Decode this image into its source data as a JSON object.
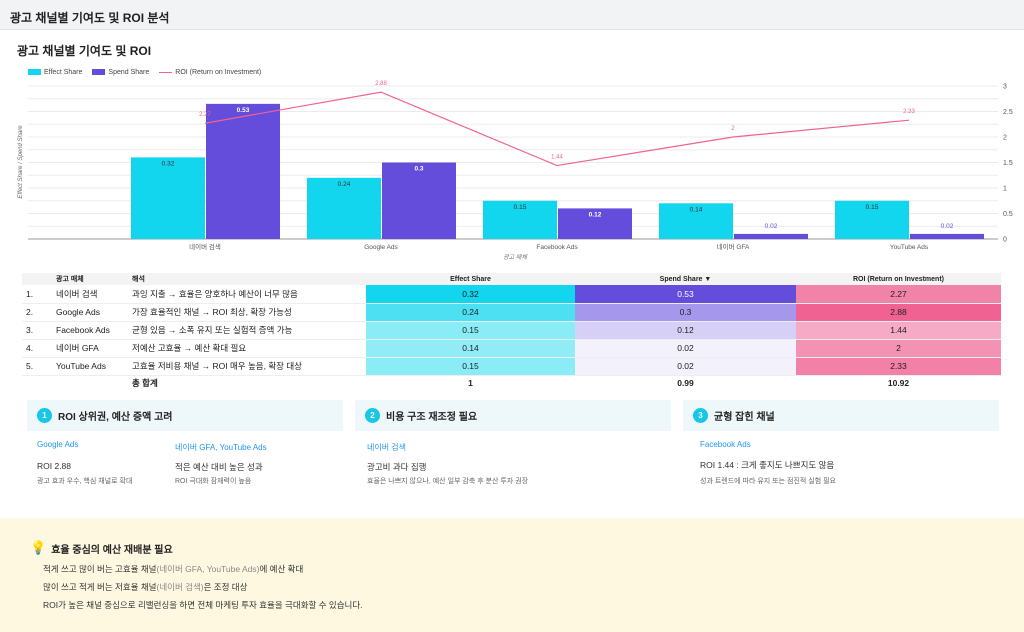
{
  "header": {
    "title": "광고 채널별 기여도 및 ROI 분석"
  },
  "chart_data": {
    "type": "bar",
    "title": "광고 채널별 기여도 및 ROI",
    "categories": [
      "네이버 검색",
      "Google Ads",
      "Facebook Ads",
      "네이버 GFA",
      "YouTube Ads"
    ],
    "series": [
      {
        "name": "Effect Share",
        "type": "bar",
        "axis": "left",
        "color": "#12d5ee",
        "values": [
          0.32,
          0.24,
          0.15,
          0.14,
          0.15
        ]
      },
      {
        "name": "Spend Share",
        "type": "bar",
        "axis": "left",
        "color": "#654ddb",
        "values": [
          0.53,
          0.3,
          0.12,
          0.02,
          0.02
        ]
      },
      {
        "name": "ROI (Return on Investment)",
        "type": "line",
        "axis": "right",
        "color": "#f06292",
        "values": [
          2.27,
          2.88,
          1.44,
          2,
          2.33
        ]
      }
    ],
    "xlabel": "광고 매체",
    "ylabel": "Effect Share / Spend Share",
    "ylim_left": [
      0,
      0.6
    ],
    "ylim_right": [
      0,
      3
    ],
    "right_ticks": [
      "0",
      "0.5",
      "1",
      "1.5",
      "2",
      "2.5",
      "3"
    ],
    "grid": true,
    "legend": "top-left"
  },
  "table": {
    "headers": [
      "",
      "광고 매체",
      "해석",
      "Effect Share",
      "Spend Share ▼",
      "ROI (Return on Investment)"
    ],
    "rows": [
      {
        "n": "1.",
        "ch": "네이버 검색",
        "desc": "과잉 지출 → 효율은 양호하나 예산이 너무 많음",
        "e": "0.32",
        "s": "0.53",
        "r": "2.27",
        "ec": "#12d5ee",
        "sc": "#654ddb",
        "rc": "#f283a8",
        "st": "#fff"
      },
      {
        "n": "2.",
        "ch": "Google Ads",
        "desc": "가장 효율적인 채널 → ROI 최상, 확장 가능성",
        "e": "0.24",
        "s": "0.3",
        "r": "2.88",
        "ec": "#4de0f2",
        "sc": "#a598ec",
        "rc": "#f06292",
        "st": "#222"
      },
      {
        "n": "3.",
        "ch": "Facebook Ads",
        "desc": "균형 있음 → 소폭 유지 또는 실험적 증액 가능",
        "e": "0.15",
        "s": "0.12",
        "r": "1.44",
        "ec": "#8aecf7",
        "sc": "#d7d0f6",
        "rc": "#f7aac6",
        "st": "#222"
      },
      {
        "n": "4.",
        "ch": "네이버 GFA",
        "desc": "저예산 고효율 → 예산 확대 필요",
        "e": "0.14",
        "s": "0.02",
        "r": "2",
        "ec": "#90edf8",
        "sc": "#f3f1fc",
        "rc": "#f492b3",
        "st": "#222"
      },
      {
        "n": "5.",
        "ch": "YouTube Ads",
        "desc": "고효율 저비용 채널 → ROI 매우 높음, 확장 대상",
        "e": "0.15",
        "s": "0.02",
        "r": "2.33",
        "ec": "#8aecf7",
        "sc": "#f3f1fc",
        "rc": "#f380a6",
        "st": "#222"
      }
    ],
    "total": {
      "label": "총 합계",
      "e": "1",
      "s": "0.99",
      "r": "10.92"
    }
  },
  "cards": [
    {
      "num": "1",
      "title": "ROI 상위권, 예산 증액 고려",
      "a": {
        "link": "Google Ads",
        "bold": "ROI 2.88",
        "note": "광고 효과 우수, 핵심 채널로 확대"
      },
      "b": {
        "link": "네이버 GFA, YouTube Ads",
        "bold": "적은 예산 대비 높은 성과",
        "note": "ROI 극대화 잠재력이 높음"
      }
    },
    {
      "num": "2",
      "title": "비용 구조 재조정 필요",
      "a": {
        "link": "네이버 검색",
        "bold": "광고비 과다 집행",
        "note": "효율은 나쁘지 않으나, 예산 일부 감축 후 분산 투자 권장"
      }
    },
    {
      "num": "3",
      "title": "균형 잡힌 채널",
      "a": {
        "link": "Facebook Ads",
        "bold": "ROI 1.44 : 크게 좋지도 나쁘지도 않음",
        "note": "성과 트렌드에 따라 유지 또는 점진적 실험 필요"
      }
    }
  ],
  "summary": {
    "title": "효율 중심의 예산 재배분 필요",
    "l1a": "적게 쓰고 많이 버는 고효율 채널",
    "l1g": "(네이버 GFA, YouTube Ads)",
    "l1b": "에 예산 확대",
    "l2a": "많이 쓰고 적게 버는 저효율 채널",
    "l2g": "(네이버 검색)",
    "l2b": "은 조정 대상",
    "l3": "ROI가 높은 채널 중심으로 리밸런싱을 하면 전체 마케팅 투자 효율을 극대화할 수 있습니다."
  }
}
